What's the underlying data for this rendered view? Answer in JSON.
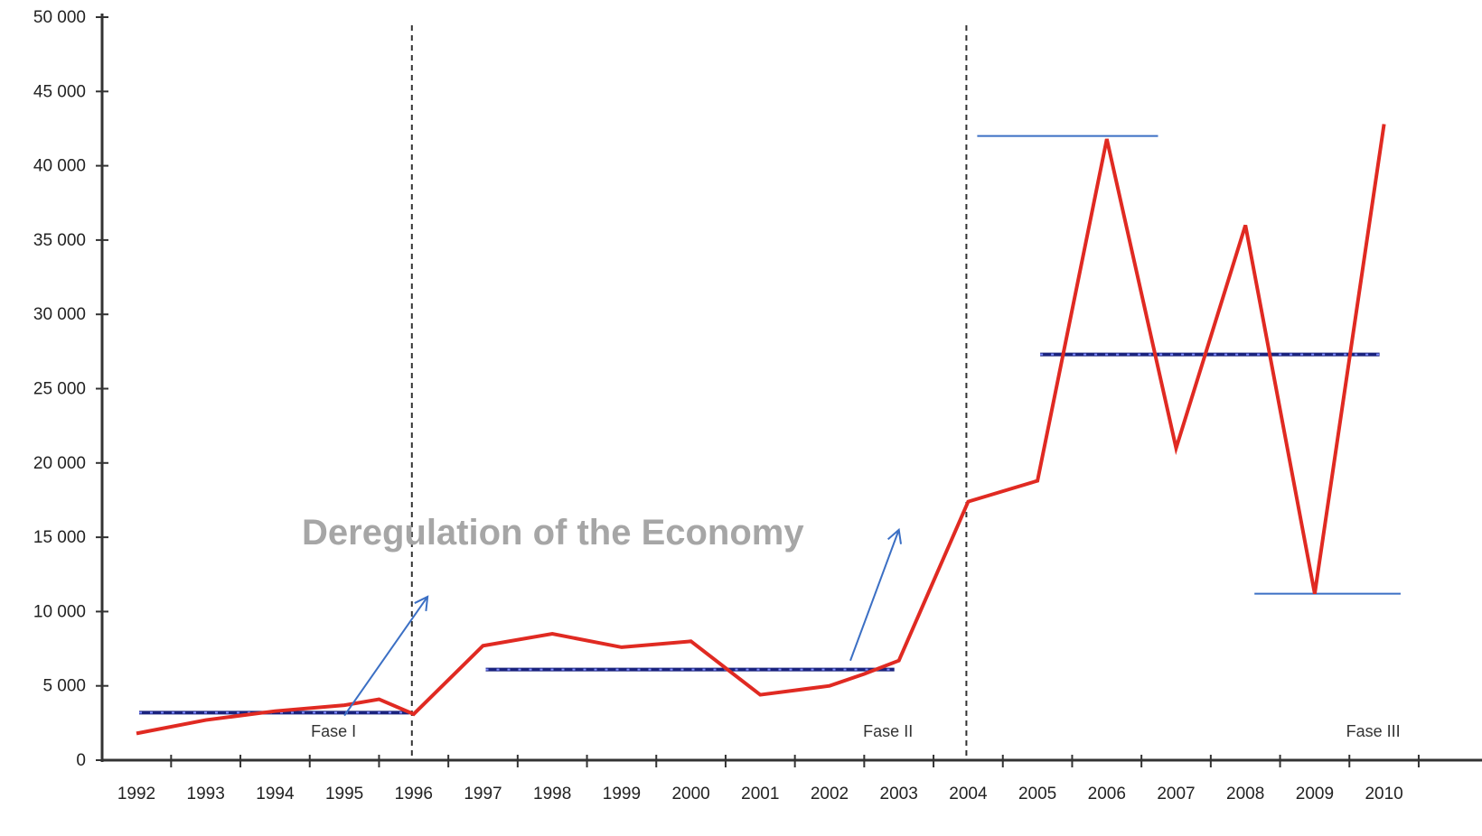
{
  "chart_data": {
    "type": "line",
    "title": "",
    "xlabel": "",
    "ylabel": "",
    "categories": [
      "1992",
      "1993",
      "1994",
      "1995",
      "1996",
      "1997",
      "1998",
      "1999",
      "2000",
      "2001",
      "2002",
      "2003",
      "2004",
      "2005",
      "2006",
      "2007",
      "2008",
      "2009",
      "2010"
    ],
    "y_tick_labels": [
      "0",
      "5 000",
      "10 000",
      "15 000",
      "20 000",
      "25 000",
      "30 000",
      "35 000",
      "40 000",
      "45 000",
      "50 000"
    ],
    "y_tick_values": [
      0,
      5000,
      10000,
      15000,
      20000,
      25000,
      30000,
      35000,
      40000,
      45000,
      50000
    ],
    "ylim": [
      0,
      50000
    ],
    "grid": false,
    "legend": "none",
    "series": [
      {
        "values": [
          1800,
          2700,
          3300,
          3700,
          4100,
          3100,
          7700,
          8500,
          7600,
          8000,
          4400,
          5000,
          5800,
          6700,
          17400,
          18800,
          41800,
          21000,
          36000,
          11200,
          42800
        ],
        "x": [
          1992,
          1993,
          1994,
          1995,
          1995.5,
          1996,
          1997,
          1998,
          1999,
          2000,
          2001,
          2002,
          2002.5,
          2003,
          2004,
          2005,
          2006,
          2007,
          2008,
          2009,
          2010
        ],
        "color": "#e02a22"
      }
    ],
    "phase_averages": [
      {
        "x_start": 1992,
        "x_end": 1996,
        "value": 3200
      },
      {
        "x_start": 1997,
        "x_end": 2003,
        "value": 6100
      },
      {
        "x_start": 2005,
        "x_end": 2010,
        "value": 27300
      }
    ],
    "phase_dividers_x": [
      1996,
      2004
    ],
    "phase_labels": [
      {
        "text": "Fase I",
        "x": 1995
      },
      {
        "text": "Fase II",
        "x": 2003
      },
      {
        "text": "Fase III",
        "x": 2010
      }
    ],
    "range_lines": [
      {
        "x_start": 2004,
        "x_end": 2007,
        "value": 42000
      },
      {
        "x_start": 2008,
        "x_end": 2010.5,
        "value": 11200
      }
    ],
    "arrows": [
      {
        "x_from": 1995,
        "y_from": 3000,
        "x_to": 1996.2,
        "y_to": 11000
      },
      {
        "x_from": 2002.3,
        "y_from": 6700,
        "x_to": 2003,
        "y_to": 15500
      }
    ],
    "annotation": "Deregulation  of the Economy",
    "colors": {
      "series": "#e02a22",
      "average": "#1a237e",
      "average_dots": "#7f8cff",
      "divider": "#333333",
      "range_line": "#3b6fc4",
      "arrow": "#3b6fc4",
      "axis": "#333333",
      "annotation": "#a6a6a6"
    }
  }
}
